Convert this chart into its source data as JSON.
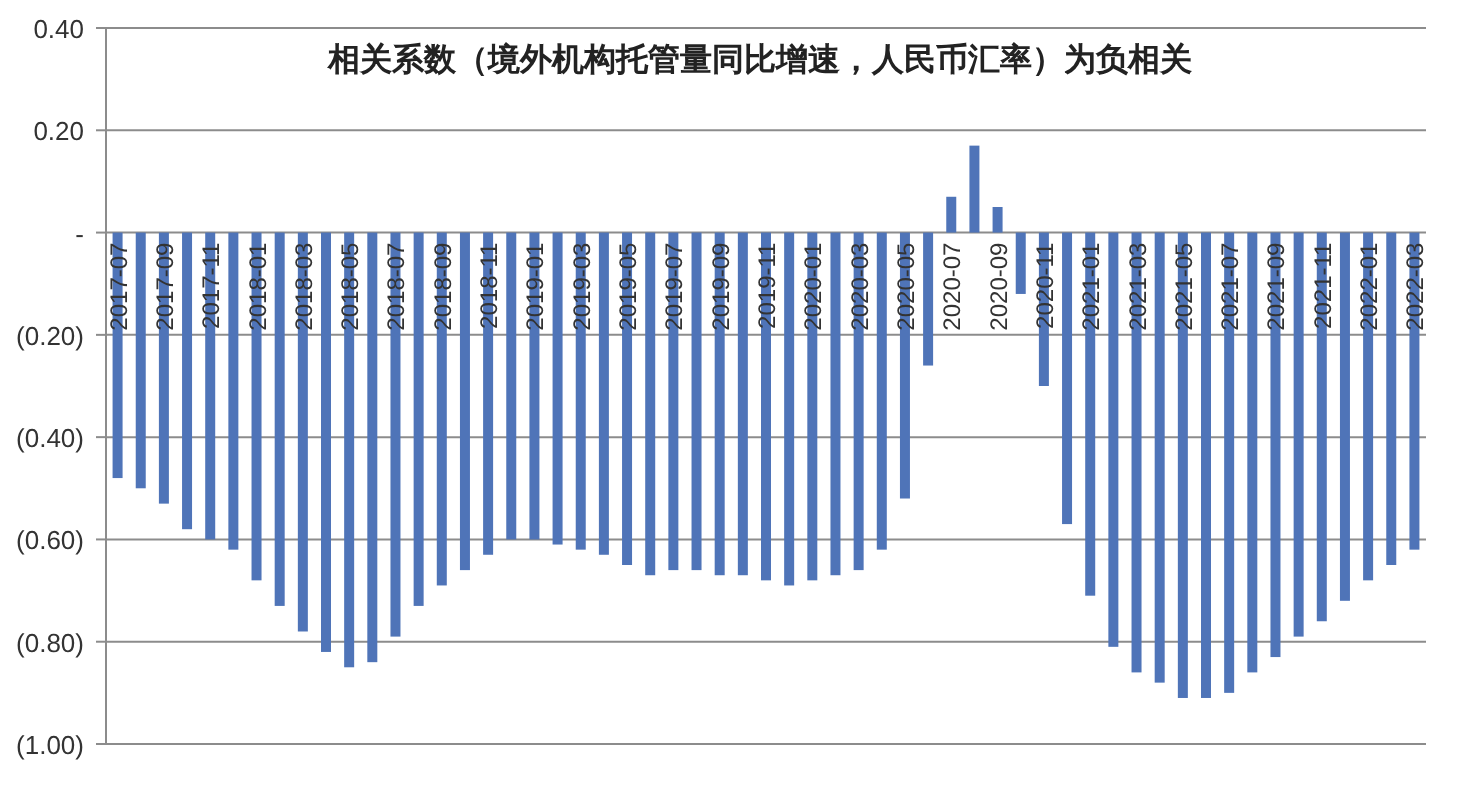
{
  "chart_data": {
    "type": "bar",
    "title": "相关系数（境外机构托管量同比增速，人民币汇率）为负相关",
    "categories": [
      "2017-07",
      null,
      "2017-09",
      null,
      "2017-11",
      null,
      "2018-01",
      null,
      "2018-03",
      null,
      "2018-05",
      null,
      "2018-07",
      null,
      "2018-09",
      null,
      "2018-11",
      null,
      "2019-01",
      null,
      "2019-03",
      null,
      "2019-05",
      null,
      "2019-07",
      null,
      "2019-09",
      null,
      "2019-11",
      null,
      "2020-01",
      null,
      "2020-03",
      null,
      "2020-05",
      null,
      "2020-07",
      null,
      "2020-09",
      null,
      "2020-11",
      null,
      "2021-01",
      null,
      "2021-03",
      null,
      "2021-05",
      null,
      "2021-07",
      null,
      "2021-09",
      null,
      "2021-11",
      null,
      "2022-01",
      null,
      "2022-03"
    ],
    "values": [
      -0.48,
      -0.5,
      -0.53,
      -0.58,
      -0.6,
      -0.62,
      -0.68,
      -0.73,
      -0.78,
      -0.82,
      -0.85,
      -0.84,
      -0.79,
      -0.73,
      -0.69,
      -0.66,
      -0.63,
      -0.6,
      -0.6,
      -0.61,
      -0.62,
      -0.63,
      -0.65,
      -0.67,
      -0.66,
      -0.66,
      -0.67,
      -0.67,
      -0.68,
      -0.69,
      -0.68,
      -0.67,
      -0.66,
      -0.62,
      -0.52,
      -0.26,
      0.07,
      0.17,
      0.05,
      -0.12,
      -0.3,
      -0.57,
      -0.71,
      -0.81,
      -0.86,
      -0.88,
      -0.91,
      -0.91,
      -0.9,
      -0.86,
      -0.83,
      -0.79,
      -0.76,
      -0.72,
      -0.68,
      -0.65,
      -0.62
    ],
    "color": "#4f74b8",
    "ylim": [
      -1.0,
      0.4
    ],
    "yticks": [
      {
        "value": 0.4,
        "label": "0.40"
      },
      {
        "value": 0.2,
        "label": "0.20"
      },
      {
        "value": 0,
        "label": "-"
      },
      {
        "value": -0.2,
        "label": "(0.20)"
      },
      {
        "value": -0.4,
        "label": "(0.40)"
      },
      {
        "value": -0.6,
        "label": "(0.60)"
      },
      {
        "value": -0.8,
        "label": "(0.80)"
      },
      {
        "value": -1.0,
        "label": "(1.00)"
      }
    ],
    "grid": "y"
  }
}
